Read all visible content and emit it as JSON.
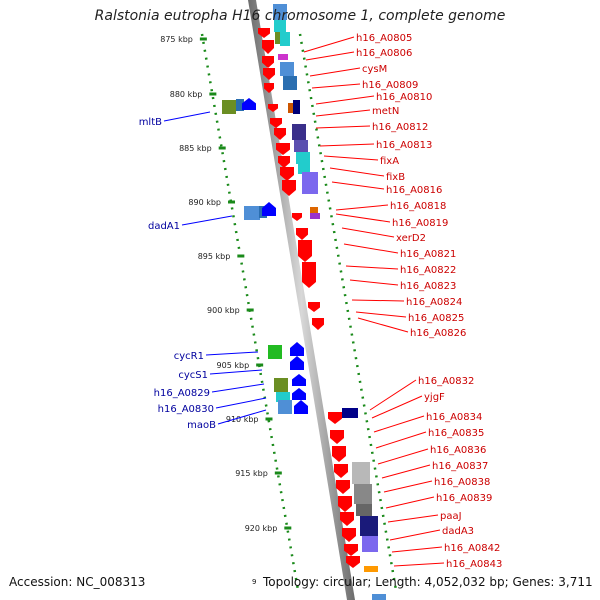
{
  "title": "Ralstonia eutropha H16 chromosome 1, complete genome",
  "footer": {
    "accession": "Accession: NC_008313",
    "summary": "Topology: circular; Length: 4,052,032 bp; Genes: 3,711",
    "edge_tick": "9"
  },
  "colors": {
    "forward_gene": "#ff0000",
    "reverse_gene": "#0000ff",
    "forward_label": "#cc0000",
    "reverse_label": "#00009e",
    "tick": "#1a8a1a",
    "backbone": "#888888"
  },
  "scale_ticks": [
    "875 kbp",
    "880 kbp",
    "885 kbp",
    "890 kbp",
    "895 kbp",
    "900 kbp",
    "905 kbp",
    "910 kbp",
    "915 kbp",
    "920 kbp"
  ],
  "forward_genes": [
    "h16_A0805",
    "h16_A0806",
    "cysM",
    "h16_A0809",
    "h16_A0810",
    "metN",
    "h16_A0812",
    "h16_A0813",
    "fixA",
    "fixB",
    "h16_A0816",
    "h16_A0818",
    "h16_A0819",
    "xerD2",
    "h16_A0821",
    "h16_A0822",
    "h16_A0823",
    "h16_A0824",
    "h16_A0825",
    "h16_A0826",
    "h16_A0832",
    "yjgF",
    "h16_A0834",
    "h16_A0835",
    "h16_A0836",
    "h16_A0837",
    "h16_A0838",
    "h16_A0839",
    "paaJ",
    "dadA3",
    "h16_A0842",
    "h16_A0843"
  ],
  "reverse_genes": [
    "mltB",
    "dadA1",
    "cycR1",
    "cycS1",
    "h16_A0829",
    "h16_A0830",
    "maoB"
  ]
}
